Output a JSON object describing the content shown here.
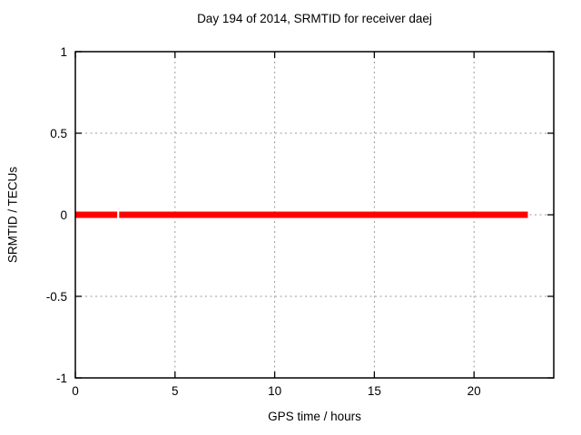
{
  "window": {
    "background": "#ffffff"
  },
  "chart_data": {
    "type": "line",
    "title": "Day 194 of 2014, SRMTID for receiver daej",
    "xlabel": "GPS time / hours",
    "ylabel": "SRMTID / TECUs",
    "xlim": [
      0,
      24
    ],
    "ylim": [
      -1,
      1
    ],
    "xticks": [
      0,
      5,
      10,
      15,
      20
    ],
    "yticks": [
      -1,
      -0.5,
      0,
      0.5,
      1
    ],
    "grid": true,
    "legend": "none",
    "series": [
      {
        "name": "SRMTID",
        "color": "#ff0000",
        "style": "thick-horizontal-line",
        "segments": [
          {
            "x_start": 0.0,
            "x_end": 2.1,
            "y": 0.0
          },
          {
            "x_start": 2.2,
            "x_end": 22.7,
            "y": 0.0
          }
        ]
      }
    ],
    "colors": {
      "axis": "#000000",
      "grid": "#9a9a9a",
      "text": "#000000"
    }
  }
}
